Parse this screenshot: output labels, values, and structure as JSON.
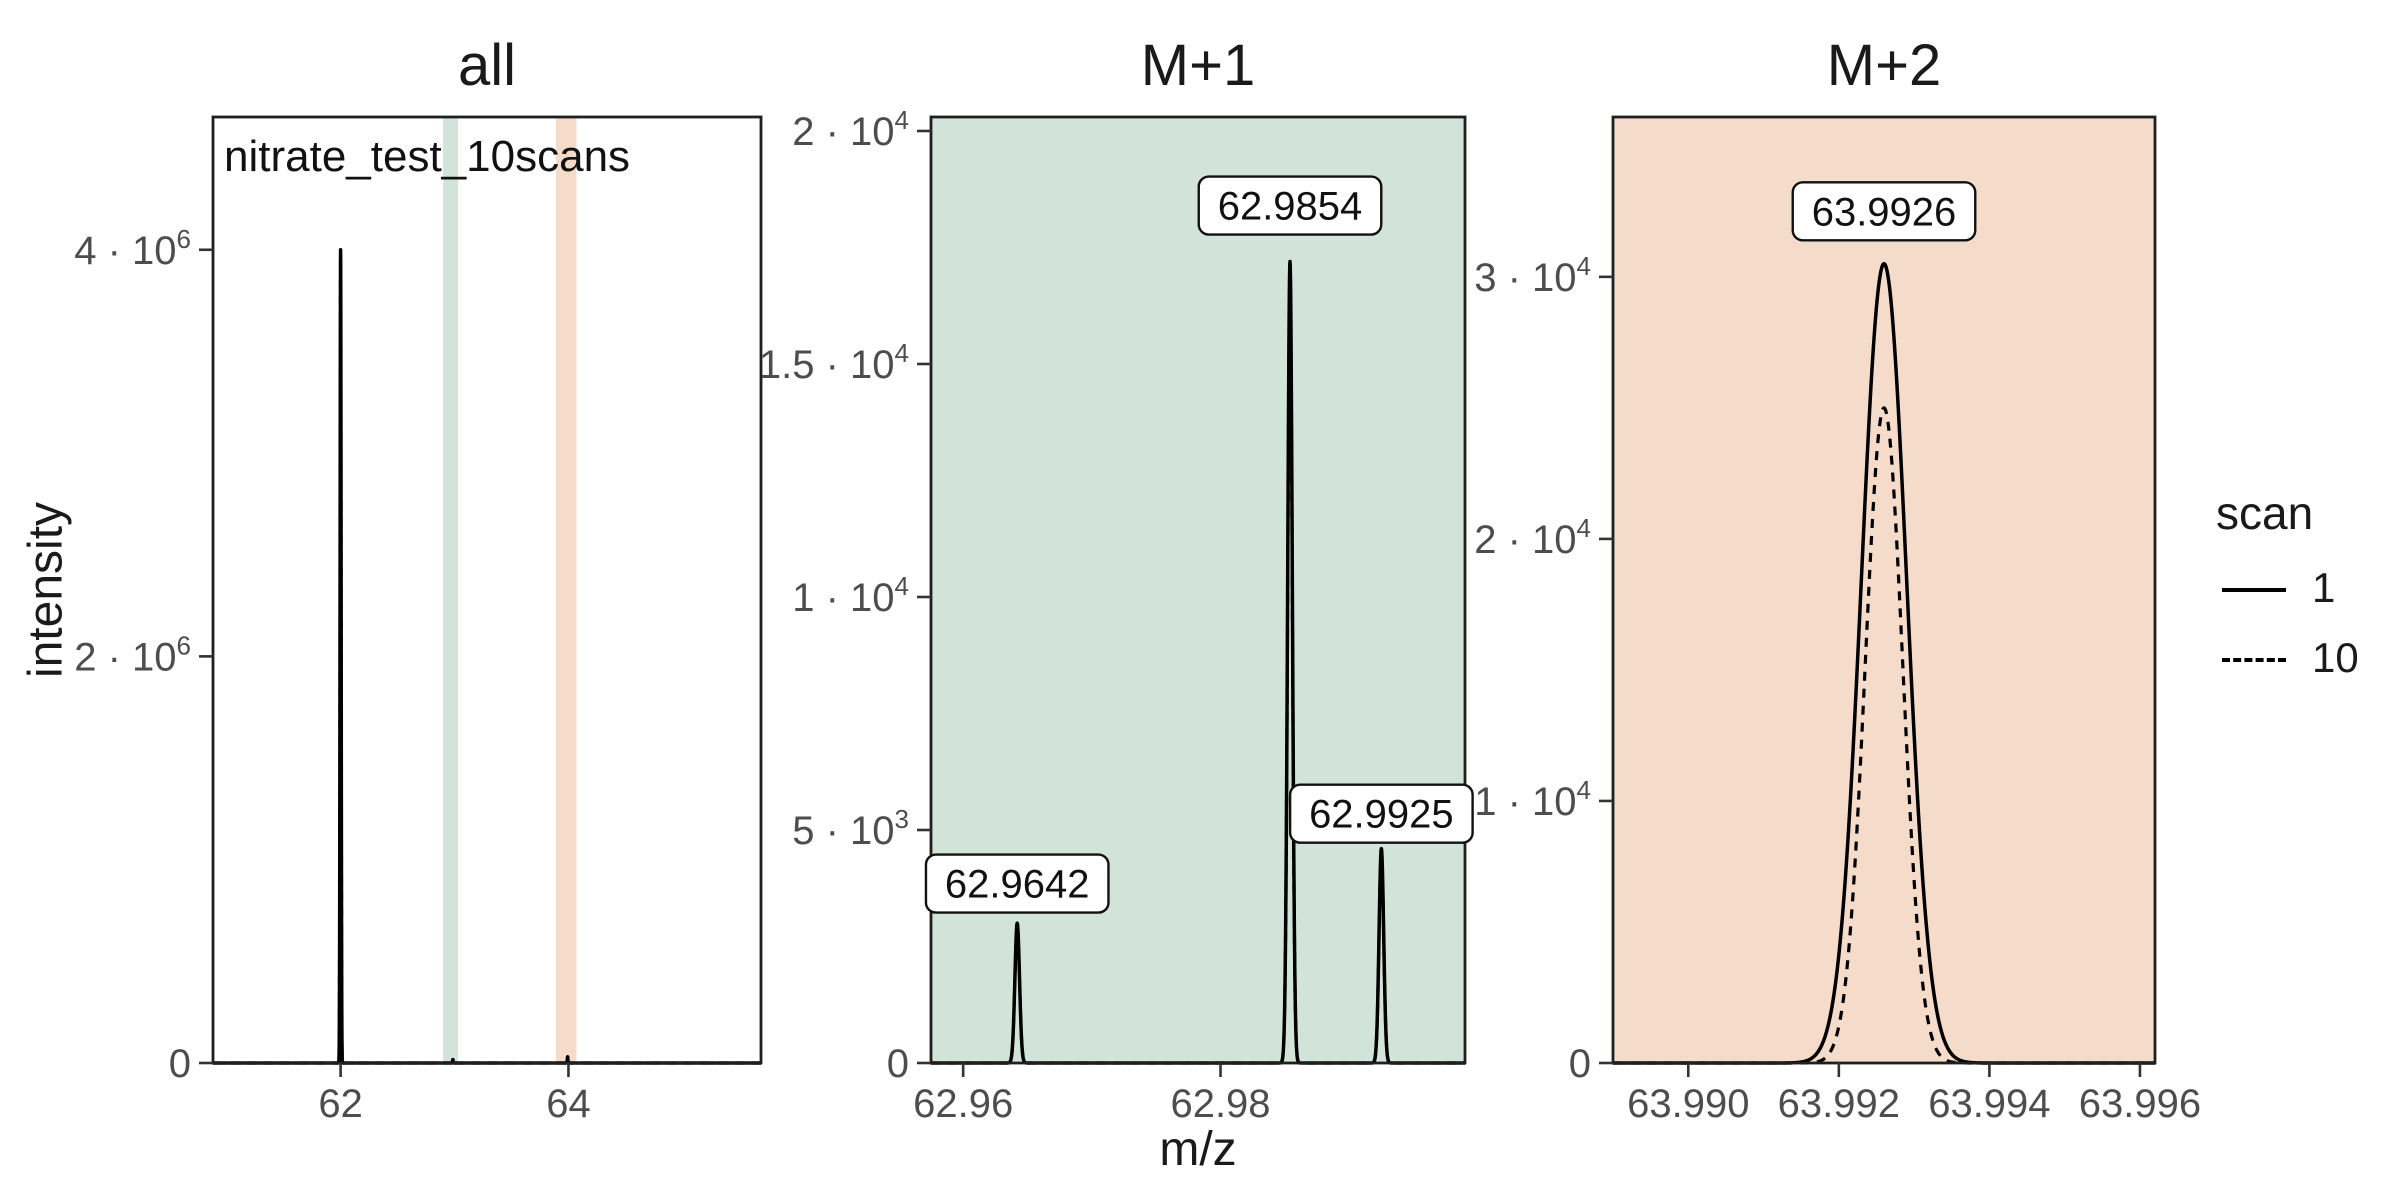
{
  "figure": {
    "y_axis_title": "intensity",
    "x_axis_title": "m/z",
    "legend": {
      "title": "scan",
      "entries": [
        {
          "label": "1",
          "linestyle": "solid"
        },
        {
          "label": "10",
          "linestyle": "dashed"
        }
      ]
    },
    "colors": {
      "mint": "#d2e4da",
      "peach": "#f5dbca",
      "line": "#000000",
      "panel_border": "#1f1f1f",
      "tick_text": "#4d4d4d",
      "tick_mark": "#333333",
      "text": "#1a1a1a",
      "label_box_fill": "#ffffff"
    }
  },
  "chart_data": {
    "type": "line",
    "description": "Mass spectrum of nitrate test data shown in three facets (full range, M+1 window, M+2 window) for scan 1 (solid) and scan 10 (dashed)",
    "legend_position": "right",
    "grid": false,
    "panels": [
      {
        "id": "all",
        "title": "all",
        "bg": "#ffffff",
        "annotation": "nitrate_test_10scans",
        "xlim": [
          60.88,
          65.69
        ],
        "ylim": [
          0,
          4653000
        ],
        "xticks": [
          {
            "v": 62,
            "label": "62"
          },
          {
            "v": 64,
            "label": "64"
          }
        ],
        "yticks": [
          {
            "v": 0,
            "label": "0"
          },
          {
            "v": 2000000,
            "label": "2 · 10^6"
          },
          {
            "v": 4000000,
            "label": "4 · 10^6"
          }
        ],
        "bands": [
          {
            "x0": 62.9,
            "x1": 63.03,
            "color": "#d2e4da"
          },
          {
            "x0": 63.89,
            "x1": 64.07,
            "color": "#f5dbca"
          }
        ],
        "series": [
          {
            "name": "1",
            "dashed": false,
            "peaks": [
              {
                "mz": 62.0,
                "intensity": 4000000,
                "sigma": 0.0045
              },
              {
                "mz": 62.9854,
                "intensity": 17200,
                "sigma": 0.0025
              },
              {
                "mz": 63.9926,
                "intensity": 30500,
                "sigma": 0.0025
              }
            ]
          },
          {
            "name": "10",
            "dashed": true,
            "peaks": [
              {
                "mz": 62.0,
                "intensity": 3960000,
                "sigma": 0.0045
              },
              {
                "mz": 62.9854,
                "intensity": 16900,
                "sigma": 0.0025
              },
              {
                "mz": 63.9926,
                "intensity": 25000,
                "sigma": 0.0025
              }
            ]
          }
        ],
        "peak_labels": []
      },
      {
        "id": "M+1",
        "title": "M+1",
        "bg": "#d2e4da",
        "annotation": "",
        "xlim": [
          62.9575,
          62.999
        ],
        "ylim": [
          0,
          20300
        ],
        "xticks": [
          {
            "v": 62.96,
            "label": "62.96"
          },
          {
            "v": 62.98,
            "label": "62.98"
          }
        ],
        "yticks": [
          {
            "v": 0,
            "label": "0"
          },
          {
            "v": 5000,
            "label": "5 · 10^3"
          },
          {
            "v": 10000,
            "label": "1 · 10^4"
          },
          {
            "v": 15000,
            "label": "1.5 · 10^4"
          },
          {
            "v": 20000,
            "label": "2 · 10^4"
          }
        ],
        "bands": [],
        "series": [
          {
            "name": "1",
            "dashed": false,
            "peaks": [
              {
                "mz": 62.9642,
                "intensity": 3000,
                "sigma": 0.00018
              },
              {
                "mz": 62.9854,
                "intensity": 17200,
                "sigma": 0.00018
              },
              {
                "mz": 62.9925,
                "intensity": 4600,
                "sigma": 0.00018
              }
            ]
          },
          {
            "name": "10",
            "dashed": true,
            "peaks": [
              {
                "mz": 62.9642,
                "intensity": 2950,
                "sigma": 0.00018
              },
              {
                "mz": 62.9854,
                "intensity": 16900,
                "sigma": 0.00018
              },
              {
                "mz": 62.9925,
                "intensity": 4500,
                "sigma": 0.00018
              }
            ]
          }
        ],
        "peak_labels": [
          {
            "text": "62.9642",
            "x": 62.9642,
            "y": 3850
          },
          {
            "text": "62.9854",
            "x": 62.9854,
            "y": 18400
          },
          {
            "text": "62.9925",
            "x": 62.9925,
            "y": 5350
          }
        ]
      },
      {
        "id": "M+2",
        "title": "M+2",
        "bg": "#f5dbca",
        "annotation": "",
        "xlim": [
          63.989,
          63.9962
        ],
        "ylim": [
          0,
          36100
        ],
        "xticks": [
          {
            "v": 63.99,
            "label": "63.990"
          },
          {
            "v": 63.992,
            "label": "63.992"
          },
          {
            "v": 63.994,
            "label": "63.994"
          },
          {
            "v": 63.996,
            "label": "63.996"
          }
        ],
        "yticks": [
          {
            "v": 0,
            "label": "0"
          },
          {
            "v": 10000,
            "label": "1 · 10^4"
          },
          {
            "v": 20000,
            "label": "2 · 10^4"
          },
          {
            "v": 30000,
            "label": "3 · 10^4"
          }
        ],
        "bands": [],
        "series": [
          {
            "name": "1",
            "dashed": false,
            "peaks": [
              {
                "mz": 63.9926,
                "intensity": 30500,
                "sigma": 0.0003
              }
            ]
          },
          {
            "name": "10",
            "dashed": true,
            "peaks": [
              {
                "mz": 63.9926,
                "intensity": 25000,
                "sigma": 0.00025
              }
            ]
          }
        ],
        "peak_labels": [
          {
            "text": "63.9926",
            "x": 63.9926,
            "y": 32500
          }
        ]
      }
    ]
  }
}
